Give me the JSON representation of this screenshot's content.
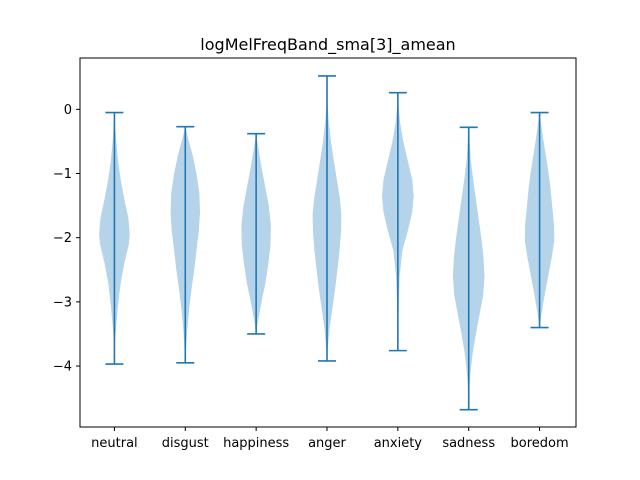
{
  "chart_data": {
    "type": "violin",
    "title": "logMelFreqBand_sma[3]_amean",
    "xlabel": "",
    "ylabel": "",
    "ylim": [
      -4.95,
      0.8
    ],
    "yticks": [
      0,
      -1,
      -2,
      -3,
      -4
    ],
    "ytick_labels": [
      "0",
      "−1",
      "−2",
      "−3",
      "−4"
    ],
    "grid": false,
    "legend": "none",
    "colors": {
      "body": "#b6d4e9",
      "line": "#1f77b4",
      "axis": "#000000"
    },
    "categories": [
      "neutral",
      "disgust",
      "happiness",
      "anger",
      "anxiety",
      "sadness",
      "boredom"
    ],
    "series": [
      {
        "min": -3.97,
        "max": -0.05,
        "width_profile": [
          [
            -3.97,
            0.0
          ],
          [
            -3.6,
            0.04
          ],
          [
            -3.3,
            0.12
          ],
          [
            -3.0,
            0.22
          ],
          [
            -2.7,
            0.35
          ],
          [
            -2.4,
            0.55
          ],
          [
            -2.1,
            0.8
          ],
          [
            -1.95,
            0.85
          ],
          [
            -1.7,
            0.78
          ],
          [
            -1.4,
            0.55
          ],
          [
            -1.1,
            0.35
          ],
          [
            -0.8,
            0.2
          ],
          [
            -0.5,
            0.1
          ],
          [
            -0.2,
            0.03
          ],
          [
            -0.05,
            0.0
          ]
        ]
      },
      {
        "min": -3.95,
        "max": -0.27,
        "width_profile": [
          [
            -3.95,
            0.0
          ],
          [
            -3.7,
            0.05
          ],
          [
            -3.4,
            0.12
          ],
          [
            -3.1,
            0.22
          ],
          [
            -2.8,
            0.35
          ],
          [
            -2.5,
            0.5
          ],
          [
            -2.2,
            0.62
          ],
          [
            -1.9,
            0.75
          ],
          [
            -1.6,
            0.82
          ],
          [
            -1.3,
            0.78
          ],
          [
            -1.0,
            0.62
          ],
          [
            -0.7,
            0.4
          ],
          [
            -0.5,
            0.2
          ],
          [
            -0.27,
            0.0
          ]
        ]
      },
      {
        "min": -3.5,
        "max": -0.38,
        "width_profile": [
          [
            -3.5,
            0.0
          ],
          [
            -3.3,
            0.1
          ],
          [
            -3.0,
            0.3
          ],
          [
            -2.7,
            0.52
          ],
          [
            -2.4,
            0.68
          ],
          [
            -2.1,
            0.8
          ],
          [
            -1.8,
            0.82
          ],
          [
            -1.5,
            0.7
          ],
          [
            -1.2,
            0.5
          ],
          [
            -0.9,
            0.3
          ],
          [
            -0.6,
            0.12
          ],
          [
            -0.38,
            0.0
          ]
        ]
      },
      {
        "min": -3.92,
        "max": 0.52,
        "width_profile": [
          [
            -3.92,
            0.0
          ],
          [
            -3.7,
            0.05
          ],
          [
            -3.4,
            0.15
          ],
          [
            -3.1,
            0.3
          ],
          [
            -2.8,
            0.45
          ],
          [
            -2.5,
            0.58
          ],
          [
            -2.2,
            0.7
          ],
          [
            -1.9,
            0.78
          ],
          [
            -1.65,
            0.8
          ],
          [
            -1.4,
            0.72
          ],
          [
            -1.1,
            0.55
          ],
          [
            -0.8,
            0.38
          ],
          [
            -0.5,
            0.22
          ],
          [
            -0.2,
            0.1
          ],
          [
            0.1,
            0.03
          ],
          [
            0.52,
            0.0
          ]
        ]
      },
      {
        "min": -3.76,
        "max": 0.26,
        "width_profile": [
          [
            -3.76,
            0.0
          ],
          [
            -3.4,
            0.02
          ],
          [
            -3.0,
            0.05
          ],
          [
            -2.6,
            0.1
          ],
          [
            -2.2,
            0.25
          ],
          [
            -1.9,
            0.55
          ],
          [
            -1.6,
            0.8
          ],
          [
            -1.35,
            0.88
          ],
          [
            -1.1,
            0.8
          ],
          [
            -0.8,
            0.55
          ],
          [
            -0.5,
            0.3
          ],
          [
            -0.2,
            0.12
          ],
          [
            0.05,
            0.04
          ],
          [
            0.26,
            0.0
          ]
        ]
      },
      {
        "min": -4.68,
        "max": -0.28,
        "width_profile": [
          [
            -4.68,
            0.0
          ],
          [
            -4.4,
            0.03
          ],
          [
            -4.1,
            0.1
          ],
          [
            -3.8,
            0.22
          ],
          [
            -3.5,
            0.4
          ],
          [
            -3.2,
            0.6
          ],
          [
            -2.9,
            0.8
          ],
          [
            -2.6,
            0.88
          ],
          [
            -2.3,
            0.82
          ],
          [
            -2.0,
            0.7
          ],
          [
            -1.7,
            0.55
          ],
          [
            -1.4,
            0.4
          ],
          [
            -1.1,
            0.25
          ],
          [
            -0.8,
            0.12
          ],
          [
            -0.5,
            0.05
          ],
          [
            -0.28,
            0.0
          ]
        ]
      },
      {
        "min": -3.4,
        "max": -0.05,
        "width_profile": [
          [
            -3.4,
            0.0
          ],
          [
            -3.2,
            0.1
          ],
          [
            -2.9,
            0.28
          ],
          [
            -2.6,
            0.48
          ],
          [
            -2.3,
            0.68
          ],
          [
            -2.05,
            0.82
          ],
          [
            -1.8,
            0.8
          ],
          [
            -1.5,
            0.7
          ],
          [
            -1.2,
            0.6
          ],
          [
            -0.9,
            0.45
          ],
          [
            -0.6,
            0.28
          ],
          [
            -0.3,
            0.12
          ],
          [
            -0.05,
            0.0
          ]
        ]
      }
    ]
  }
}
